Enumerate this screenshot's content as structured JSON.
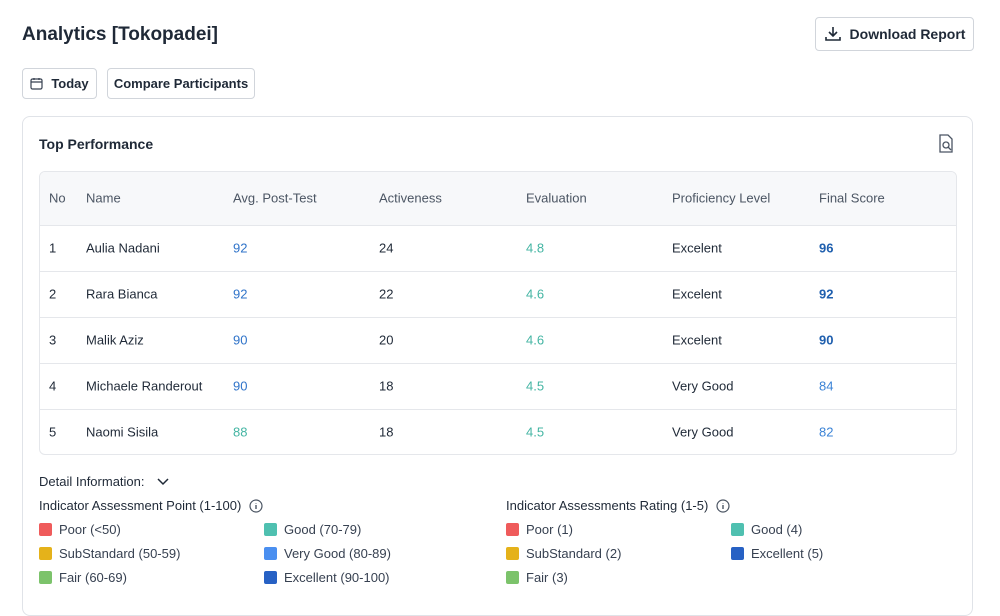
{
  "header": {
    "title": "Analytics [Tokopadei]",
    "download": "Download Report"
  },
  "filters": {
    "today": "Today",
    "compare": "Compare Participants"
  },
  "card": {
    "title": "Top Performance",
    "table": {
      "columns": [
        "No",
        "Name",
        "Avg. Post-Test",
        "Activeness",
        "Evaluation",
        "Proficiency Level",
        "Final Score"
      ],
      "rows": [
        [
          {
            "text": "1"
          },
          {
            "text": "Aulia Nadani"
          },
          {
            "text": "92",
            "color": "#2f73c9"
          },
          {
            "text": "24"
          },
          {
            "text": "4.8",
            "color": "#44b5a3"
          },
          {
            "text": "Excelent"
          },
          {
            "text": "96",
            "color": "#1f5fae",
            "bold": true
          }
        ],
        [
          {
            "text": "2"
          },
          {
            "text": "Rara Bianca"
          },
          {
            "text": "92",
            "color": "#2f73c9"
          },
          {
            "text": "22"
          },
          {
            "text": "4.6",
            "color": "#44b5a3"
          },
          {
            "text": "Excelent"
          },
          {
            "text": "92",
            "color": "#1f5fae",
            "bold": true
          }
        ],
        [
          {
            "text": "3"
          },
          {
            "text": "Malik Aziz"
          },
          {
            "text": "90",
            "color": "#2f73c9"
          },
          {
            "text": "20"
          },
          {
            "text": "4.6",
            "color": "#44b5a3"
          },
          {
            "text": "Excelent"
          },
          {
            "text": "90",
            "color": "#1f5fae",
            "bold": true
          }
        ],
        [
          {
            "text": "4"
          },
          {
            "text": "Michaele Randerout"
          },
          {
            "text": "90",
            "color": "#2f73c9"
          },
          {
            "text": "18"
          },
          {
            "text": "4.5",
            "color": "#44b5a3"
          },
          {
            "text": "Very Good"
          },
          {
            "text": "84",
            "color": "#3b83d6"
          }
        ],
        [
          {
            "text": "5"
          },
          {
            "text": "Naomi Sisila"
          },
          {
            "text": "88",
            "color": "#44b5a3"
          },
          {
            "text": "18"
          },
          {
            "text": "4.5",
            "color": "#44b5a3"
          },
          {
            "text": "Very Good"
          },
          {
            "text": "82",
            "color": "#3b83d6"
          }
        ]
      ]
    }
  },
  "detail": {
    "title": "Detail Information:",
    "groups": [
      {
        "title": "Indicator Assessment Point (1-100)",
        "columns": [
          [
            {
              "label": "Poor (<50)",
              "color": "#ef5b5b"
            },
            {
              "label": "SubStandard (50-59)",
              "color": "#e5b21a"
            },
            {
              "label": "Fair (60-69)",
              "color": "#7cc36b"
            }
          ],
          [
            {
              "label": "Good (70-79)",
              "color": "#4fc0b0"
            },
            {
              "label": "Very Good (80-89)",
              "color": "#4a8ff0"
            },
            {
              "label": "Excellent (90-100)",
              "color": "#2761c4"
            }
          ]
        ]
      },
      {
        "title": "Indicator Assessments Rating (1-5)",
        "columns": [
          [
            {
              "label": "Poor (1)",
              "color": "#ef5b5b"
            },
            {
              "label": "SubStandard (2)",
              "color": "#e5b21a"
            },
            {
              "label": "Fair (3)",
              "color": "#7cc36b"
            }
          ],
          [
            {
              "label": "Good (4)",
              "color": "#4fc0b0"
            },
            {
              "label": "Excellent (5)",
              "color": "#2761c4"
            }
          ]
        ]
      }
    ]
  }
}
